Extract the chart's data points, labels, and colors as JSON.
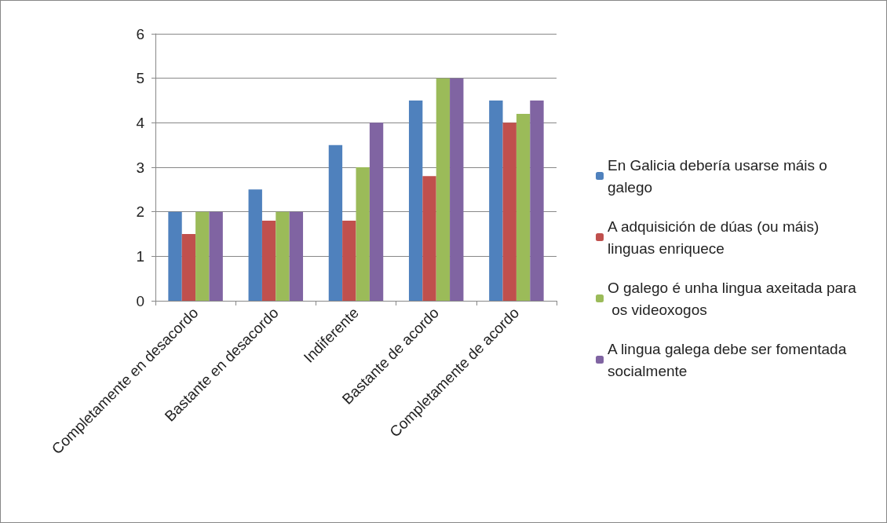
{
  "chart_data": {
    "type": "bar",
    "categories": [
      "Completamente en desacordo",
      "Bastante en desacordo",
      "Indiferente",
      "Bastante de acordo",
      "Completamente de acordo"
    ],
    "series": [
      {
        "name": "En Galicia debería usarse máis o galego",
        "color": "#4f81bd",
        "values": [
          2,
          2.5,
          3.5,
          4.5,
          4.5
        ]
      },
      {
        "name": "A adquisición de dúas (ou máis) linguas enriquece",
        "color": "#c0504d",
        "values": [
          1.5,
          1.8,
          1.8,
          2.8,
          4
        ]
      },
      {
        "name": "O galego é unha lingua axeitada para os videoxogos",
        "color": "#9bbb59",
        "values": [
          2,
          2,
          3,
          5,
          4.2
        ]
      },
      {
        "name": "A lingua galega debe ser fomentada socialmente",
        "color": "#8064a2",
        "values": [
          2,
          2,
          4,
          5,
          4.5
        ]
      }
    ],
    "ylim": [
      0,
      6
    ],
    "yticks": [
      0,
      1,
      2,
      3,
      4,
      5,
      6
    ],
    "grid": "y",
    "legend": "right"
  }
}
